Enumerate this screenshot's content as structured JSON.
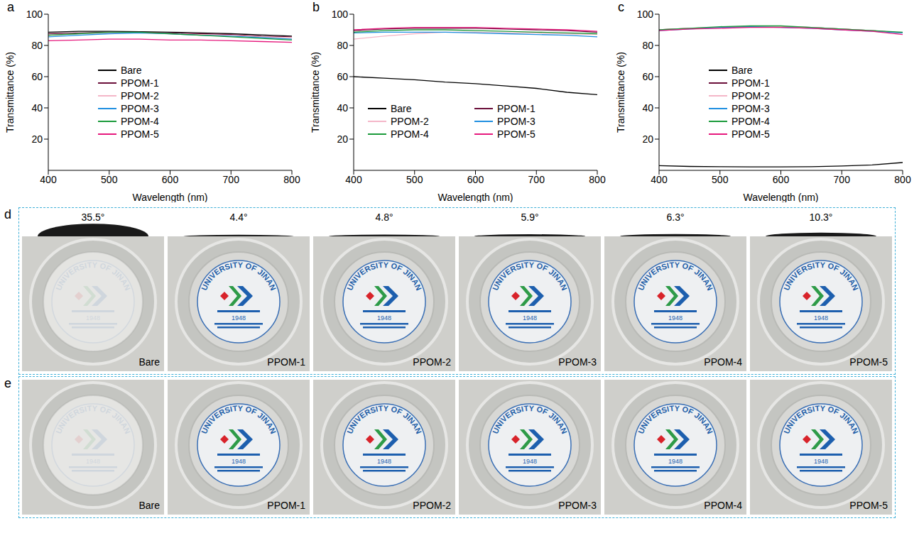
{
  "chart_data": [
    {
      "panel": "a",
      "type": "line",
      "x_label": "Wavelength (nm)",
      "y_label": "Transmittance (%)",
      "x": [
        400,
        450,
        500,
        550,
        600,
        650,
        700,
        750,
        800
      ],
      "xlim": [
        400,
        800
      ],
      "xticks": [
        400,
        500,
        600,
        700,
        800
      ],
      "ylim": [
        0,
        100
      ],
      "yticks": [
        20,
        40,
        60,
        80,
        100
      ],
      "grid": false,
      "legend": "lower left",
      "series": [
        {
          "name": "Bare",
          "color": "#000000",
          "values": [
            88.5,
            89,
            89,
            88.8,
            88.5,
            88,
            87.5,
            86.8,
            86
          ]
        },
        {
          "name": "PPOM-1",
          "color": "#6b0f3a",
          "values": [
            87.5,
            88,
            88.5,
            88.5,
            88,
            87.5,
            87,
            86,
            85.5
          ]
        },
        {
          "name": "PPOM-2",
          "color": "#f4b6c8",
          "values": [
            86.5,
            87.5,
            88,
            88,
            87.5,
            87,
            86.5,
            85.5,
            85
          ]
        },
        {
          "name": "PPOM-3",
          "color": "#1f8fe0",
          "values": [
            85.5,
            86.5,
            87.5,
            88,
            87.5,
            86.5,
            86,
            85,
            84
          ]
        },
        {
          "name": "PPOM-4",
          "color": "#1a9a3a",
          "values": [
            86.5,
            87.5,
            88.5,
            88.5,
            87.5,
            86.5,
            85.5,
            84.5,
            83.5
          ]
        },
        {
          "name": "PPOM-5",
          "color": "#e6197d",
          "values": [
            83,
            83.5,
            84,
            84,
            83.5,
            83.5,
            83,
            82.5,
            82
          ]
        }
      ]
    },
    {
      "panel": "b",
      "type": "line",
      "x_label": "Wavelength (nm)",
      "y_label": "Transmittance (%)",
      "x": [
        400,
        450,
        500,
        550,
        600,
        650,
        700,
        750,
        800
      ],
      "xlim": [
        400,
        800
      ],
      "xticks": [
        400,
        500,
        600,
        700,
        800
      ],
      "ylim": [
        0,
        100
      ],
      "yticks": [
        20,
        40,
        60,
        80,
        100
      ],
      "grid": false,
      "legend": "lower center",
      "series": [
        {
          "name": "Bare",
          "color": "#000000",
          "values": [
            60,
            59,
            58,
            56.5,
            55.5,
            54,
            52.5,
            50,
            48.5
          ]
        },
        {
          "name": "PPOM-1",
          "color": "#6b0f3a",
          "values": [
            89.5,
            90.5,
            91,
            91,
            91,
            90.5,
            90,
            89.5,
            88.5
          ]
        },
        {
          "name": "PPOM-2",
          "color": "#f4b6c8",
          "values": [
            84,
            86,
            87.5,
            88.5,
            88.5,
            88,
            88,
            87.5,
            87
          ]
        },
        {
          "name": "PPOM-3",
          "color": "#1f8fe0",
          "values": [
            88,
            88.5,
            88.5,
            88.5,
            88,
            87.5,
            87,
            86.5,
            85.5
          ]
        },
        {
          "name": "PPOM-4",
          "color": "#1a9a3a",
          "values": [
            88.5,
            89.5,
            90,
            90,
            89.5,
            89,
            88.5,
            88,
            87.5
          ]
        },
        {
          "name": "PPOM-5",
          "color": "#e6197d",
          "values": [
            90,
            91,
            91.5,
            91.5,
            91.5,
            91,
            90.5,
            90,
            89
          ]
        }
      ]
    },
    {
      "panel": "c",
      "type": "line",
      "x_label": "Wavelength (nm)",
      "y_label": "Transmittance (%)",
      "x": [
        400,
        450,
        500,
        550,
        600,
        650,
        700,
        750,
        800
      ],
      "xlim": [
        400,
        800
      ],
      "xticks": [
        400,
        500,
        600,
        700,
        800
      ],
      "ylim": [
        0,
        100
      ],
      "yticks": [
        20,
        40,
        60,
        80,
        100
      ],
      "grid": false,
      "legend": "lower left",
      "series": [
        {
          "name": "Bare",
          "color": "#000000",
          "values": [
            3,
            2.5,
            2.3,
            2.2,
            2.2,
            2.3,
            2.8,
            3.5,
            5
          ]
        },
        {
          "name": "PPOM-1",
          "color": "#6b0f3a",
          "values": [
            90,
            91,
            91.5,
            92,
            92,
            91.5,
            90.5,
            89.5,
            88
          ]
        },
        {
          "name": "PPOM-2",
          "color": "#f4b6c8",
          "values": [
            90,
            91,
            91.5,
            92,
            92,
            91.5,
            90.5,
            89.5,
            88
          ]
        },
        {
          "name": "PPOM-3",
          "color": "#1f8fe0",
          "values": [
            89.5,
            90.5,
            91.5,
            92,
            91.5,
            91,
            90,
            89,
            88
          ]
        },
        {
          "name": "PPOM-4",
          "color": "#1a9a3a",
          "values": [
            90,
            91,
            92,
            92.5,
            92.5,
            91.5,
            90.5,
            89.5,
            88.5
          ]
        },
        {
          "name": "PPOM-5",
          "color": "#e6197d",
          "values": [
            89.5,
            90.5,
            91,
            91.5,
            91.5,
            91,
            90,
            89,
            87
          ]
        }
      ]
    }
  ],
  "photo_panels": [
    {
      "panel": "d",
      "contact_angles": [
        {
          "value": 35.5,
          "label": "35.5°"
        },
        {
          "value": 4.4,
          "label": "4.4°"
        },
        {
          "value": 4.8,
          "label": "4.8°"
        },
        {
          "value": 5.9,
          "label": "5.9°"
        },
        {
          "value": 6.3,
          "label": "6.3°"
        },
        {
          "value": 10.3,
          "label": "10.3°"
        }
      ],
      "samples": [
        "Bare",
        "PPOM-1",
        "PPOM-2",
        "PPOM-3",
        "PPOM-4",
        "PPOM-5"
      ]
    },
    {
      "panel": "e",
      "samples": [
        "Bare",
        "PPOM-1",
        "PPOM-2",
        "PPOM-3",
        "PPOM-4",
        "PPOM-5"
      ]
    }
  ],
  "logo": {
    "text": "UNIVERSITY OF JINAN",
    "year": "1948"
  }
}
